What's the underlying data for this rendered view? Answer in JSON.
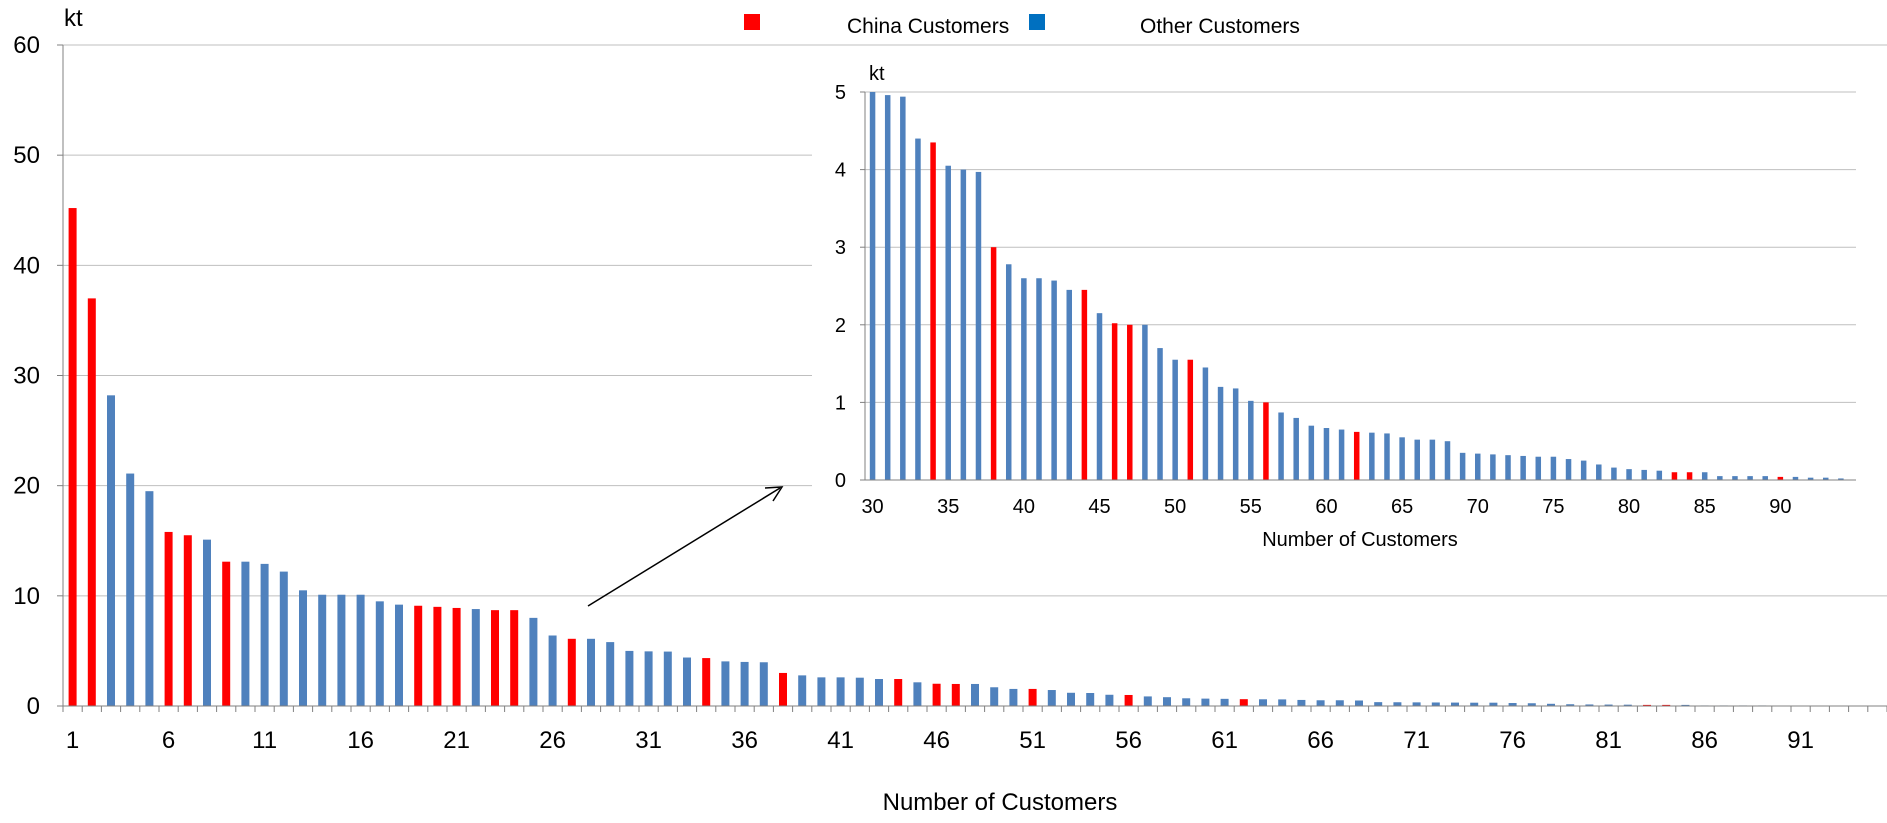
{
  "colors": {
    "china": "#ff0000",
    "other": "#4f81bd",
    "legend_other_swatch": "#0070c0",
    "grid": "#bfbfbf",
    "axis": "#808080"
  },
  "legend": {
    "china_label": "China Customers",
    "other_label": "Other Customers"
  },
  "chart_data": [
    {
      "type": "bar",
      "ylabel": "kt",
      "xlabel": "Number of Customers",
      "ylim": [
        0,
        60
      ],
      "yticks": [
        0,
        10,
        20,
        30,
        40,
        50,
        60
      ],
      "xtick_labels": [
        "1",
        "6",
        "11",
        "16",
        "21",
        "26",
        "31",
        "36",
        "41",
        "46",
        "51",
        "56",
        "61",
        "66",
        "71",
        "76",
        "81",
        "86",
        "91"
      ],
      "grid": true,
      "legend_position": "top",
      "x": [
        1,
        2,
        3,
        4,
        5,
        6,
        7,
        8,
        9,
        10,
        11,
        12,
        13,
        14,
        15,
        16,
        17,
        18,
        19,
        20,
        21,
        22,
        23,
        24,
        25,
        26,
        27,
        28,
        29,
        30,
        31,
        32,
        33,
        34,
        35,
        36,
        37,
        38,
        39,
        40,
        41,
        42,
        43,
        44,
        45,
        46,
        47,
        48,
        49,
        50,
        51,
        52,
        53,
        54,
        55,
        56,
        57,
        58,
        59,
        60,
        61,
        62,
        63,
        64,
        65,
        66,
        67,
        68,
        69,
        70,
        71,
        72,
        73,
        74,
        75,
        76,
        77,
        78,
        79,
        80,
        81,
        82,
        83,
        84,
        85,
        86,
        87,
        88,
        89,
        90,
        91,
        92,
        93,
        94
      ],
      "values": [
        45.2,
        37.0,
        28.2,
        21.1,
        19.5,
        15.8,
        15.5,
        15.1,
        13.1,
        13.1,
        12.9,
        12.2,
        10.5,
        10.1,
        10.1,
        10.1,
        9.5,
        9.2,
        9.1,
        9.0,
        8.9,
        8.8,
        8.7,
        8.7,
        8.0,
        6.4,
        6.1,
        6.1,
        5.8,
        5.0,
        4.96,
        4.94,
        4.4,
        4.35,
        4.05,
        4.0,
        3.97,
        3.0,
        2.78,
        2.6,
        2.6,
        2.57,
        2.45,
        2.45,
        2.15,
        2.02,
        2.0,
        2.0,
        1.7,
        1.55,
        1.55,
        1.45,
        1.2,
        1.18,
        1.02,
        1.0,
        0.87,
        0.8,
        0.7,
        0.67,
        0.65,
        0.62,
        0.61,
        0.6,
        0.55,
        0.52,
        0.52,
        0.5,
        0.35,
        0.34,
        0.33,
        0.32,
        0.31,
        0.3,
        0.3,
        0.27,
        0.25,
        0.2,
        0.16,
        0.14,
        0.13,
        0.12,
        0.1,
        0.1,
        0.1,
        0.05,
        0.05,
        0.05,
        0.05,
        0.04,
        0.04,
        0.03,
        0.03,
        0.02
      ],
      "china_customers": [
        1,
        2,
        6,
        7,
        9,
        19,
        20,
        21,
        23,
        24,
        27,
        34,
        38,
        44,
        46,
        47,
        51,
        56,
        62,
        83,
        84,
        90
      ]
    },
    {
      "type": "bar",
      "ylabel": "kt",
      "xlabel": "Number of Customers",
      "ylim": [
        0,
        5
      ],
      "yticks": [
        0,
        1,
        2,
        3,
        4,
        5
      ],
      "xtick_labels": [
        "30",
        "35",
        "40",
        "45",
        "50",
        "55",
        "60",
        "65",
        "70",
        "75",
        "80",
        "85",
        "90"
      ],
      "grid": true,
      "x_range": [
        30,
        94
      ]
    }
  ]
}
